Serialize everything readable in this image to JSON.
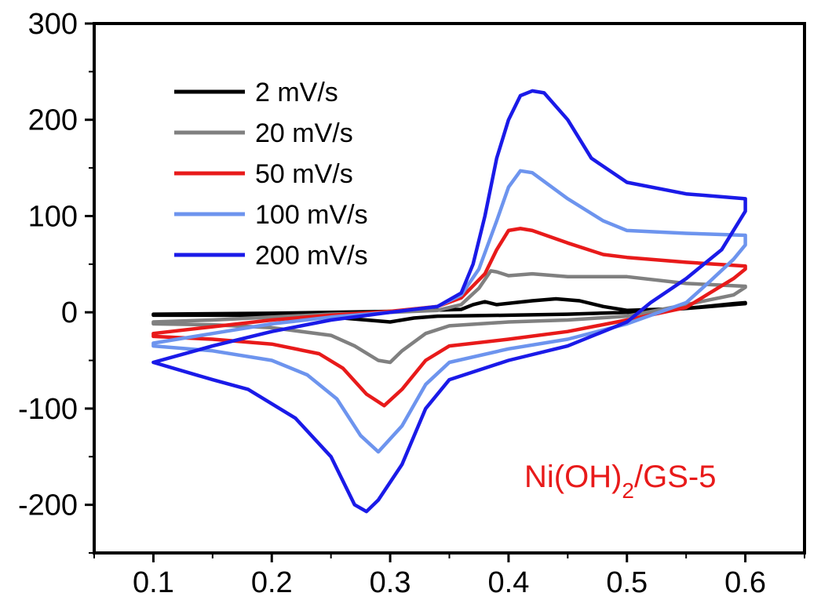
{
  "chart_data": {
    "type": "line",
    "title": "",
    "xlabel": "",
    "ylabel": "",
    "xlim": [
      0.05,
      0.65
    ],
    "ylim": [
      -250,
      300
    ],
    "xticks": [
      "0.1",
      "0.2",
      "0.3",
      "0.4",
      "0.5",
      "0.6"
    ],
    "yticks": [
      "300",
      "200",
      "100",
      "0",
      "-100",
      "-200"
    ],
    "legend_position": "top-left",
    "annotation": {
      "base": "Ni(OH)",
      "sub": "2",
      "rest": "/GS-5",
      "color": "#e81a1a"
    },
    "series": [
      {
        "name": "2 mV/s",
        "color": "#000000",
        "points": [
          [
            0.1,
            -2
          ],
          [
            0.2,
            -1
          ],
          [
            0.3,
            1
          ],
          [
            0.36,
            3
          ],
          [
            0.37,
            8
          ],
          [
            0.38,
            11
          ],
          [
            0.39,
            8
          ],
          [
            0.42,
            12
          ],
          [
            0.44,
            14
          ],
          [
            0.46,
            12
          ],
          [
            0.48,
            6
          ],
          [
            0.5,
            2
          ],
          [
            0.55,
            4
          ],
          [
            0.6,
            9
          ],
          [
            0.6,
            10
          ],
          [
            0.59,
            9
          ],
          [
            0.55,
            4
          ],
          [
            0.5,
            0
          ],
          [
            0.45,
            -2
          ],
          [
            0.4,
            -3
          ],
          [
            0.34,
            -4
          ],
          [
            0.32,
            -6
          ],
          [
            0.3,
            -10
          ],
          [
            0.28,
            -8
          ],
          [
            0.25,
            -5
          ],
          [
            0.2,
            -3
          ],
          [
            0.1,
            -3
          ]
        ]
      },
      {
        "name": "20 mV/s",
        "color": "#808080",
        "points": [
          [
            0.1,
            -10
          ],
          [
            0.15,
            -8
          ],
          [
            0.2,
            -5
          ],
          [
            0.25,
            -2
          ],
          [
            0.3,
            0
          ],
          [
            0.34,
            2
          ],
          [
            0.36,
            8
          ],
          [
            0.375,
            25
          ],
          [
            0.385,
            43
          ],
          [
            0.39,
            42
          ],
          [
            0.4,
            38
          ],
          [
            0.42,
            40
          ],
          [
            0.45,
            37
          ],
          [
            0.5,
            37
          ],
          [
            0.55,
            30
          ],
          [
            0.6,
            27
          ],
          [
            0.6,
            26
          ],
          [
            0.59,
            18
          ],
          [
            0.55,
            8
          ],
          [
            0.5,
            -4
          ],
          [
            0.45,
            -8
          ],
          [
            0.4,
            -10
          ],
          [
            0.35,
            -14
          ],
          [
            0.33,
            -22
          ],
          [
            0.31,
            -40
          ],
          [
            0.3,
            -52
          ],
          [
            0.29,
            -50
          ],
          [
            0.27,
            -35
          ],
          [
            0.25,
            -24
          ],
          [
            0.2,
            -16
          ],
          [
            0.15,
            -13
          ],
          [
            0.1,
            -12
          ]
        ]
      },
      {
        "name": "50 mV/s",
        "color": "#e81a1a",
        "points": [
          [
            0.1,
            -22
          ],
          [
            0.15,
            -15
          ],
          [
            0.2,
            -8
          ],
          [
            0.25,
            -3
          ],
          [
            0.3,
            1
          ],
          [
            0.34,
            6
          ],
          [
            0.36,
            15
          ],
          [
            0.38,
            40
          ],
          [
            0.39,
            65
          ],
          [
            0.4,
            85
          ],
          [
            0.41,
            87
          ],
          [
            0.42,
            85
          ],
          [
            0.45,
            72
          ],
          [
            0.48,
            60
          ],
          [
            0.5,
            57
          ],
          [
            0.55,
            52
          ],
          [
            0.6,
            48
          ],
          [
            0.6,
            45
          ],
          [
            0.59,
            35
          ],
          [
            0.57,
            20
          ],
          [
            0.55,
            5
          ],
          [
            0.5,
            -8
          ],
          [
            0.45,
            -20
          ],
          [
            0.4,
            -28
          ],
          [
            0.35,
            -35
          ],
          [
            0.33,
            -50
          ],
          [
            0.31,
            -80
          ],
          [
            0.295,
            -97
          ],
          [
            0.28,
            -85
          ],
          [
            0.26,
            -58
          ],
          [
            0.24,
            -43
          ],
          [
            0.2,
            -33
          ],
          [
            0.15,
            -28
          ],
          [
            0.1,
            -25
          ]
        ]
      },
      {
        "name": "100 mV/s",
        "color": "#6d94ee",
        "points": [
          [
            0.1,
            -32
          ],
          [
            0.15,
            -22
          ],
          [
            0.2,
            -12
          ],
          [
            0.25,
            -5
          ],
          [
            0.3,
            0
          ],
          [
            0.34,
            6
          ],
          [
            0.36,
            18
          ],
          [
            0.375,
            45
          ],
          [
            0.39,
            95
          ],
          [
            0.4,
            130
          ],
          [
            0.41,
            147
          ],
          [
            0.42,
            145
          ],
          [
            0.45,
            118
          ],
          [
            0.48,
            95
          ],
          [
            0.5,
            85
          ],
          [
            0.55,
            82
          ],
          [
            0.6,
            80
          ],
          [
            0.6,
            70
          ],
          [
            0.59,
            55
          ],
          [
            0.57,
            32
          ],
          [
            0.55,
            10
          ],
          [
            0.5,
            -12
          ],
          [
            0.45,
            -28
          ],
          [
            0.4,
            -38
          ],
          [
            0.35,
            -52
          ],
          [
            0.33,
            -75
          ],
          [
            0.31,
            -118
          ],
          [
            0.29,
            -145
          ],
          [
            0.275,
            -128
          ],
          [
            0.255,
            -90
          ],
          [
            0.23,
            -65
          ],
          [
            0.2,
            -50
          ],
          [
            0.15,
            -40
          ],
          [
            0.1,
            -35
          ]
        ]
      },
      {
        "name": "200 mV/s",
        "color": "#1a1ae8",
        "points": [
          [
            0.1,
            -52
          ],
          [
            0.15,
            -35
          ],
          [
            0.2,
            -20
          ],
          [
            0.25,
            -8
          ],
          [
            0.3,
            0
          ],
          [
            0.34,
            6
          ],
          [
            0.36,
            20
          ],
          [
            0.37,
            50
          ],
          [
            0.38,
            100
          ],
          [
            0.39,
            160
          ],
          [
            0.4,
            200
          ],
          [
            0.41,
            225
          ],
          [
            0.42,
            230
          ],
          [
            0.43,
            228
          ],
          [
            0.45,
            200
          ],
          [
            0.47,
            160
          ],
          [
            0.5,
            135
          ],
          [
            0.55,
            123
          ],
          [
            0.58,
            120
          ],
          [
            0.6,
            118
          ],
          [
            0.6,
            105
          ],
          [
            0.58,
            65
          ],
          [
            0.55,
            35
          ],
          [
            0.52,
            10
          ],
          [
            0.5,
            -10
          ],
          [
            0.45,
            -35
          ],
          [
            0.4,
            -50
          ],
          [
            0.35,
            -70
          ],
          [
            0.33,
            -100
          ],
          [
            0.31,
            -158
          ],
          [
            0.29,
            -195
          ],
          [
            0.28,
            -207
          ],
          [
            0.27,
            -200
          ],
          [
            0.25,
            -150
          ],
          [
            0.22,
            -110
          ],
          [
            0.18,
            -80
          ],
          [
            0.15,
            -70
          ],
          [
            0.1,
            -52
          ]
        ]
      }
    ]
  }
}
